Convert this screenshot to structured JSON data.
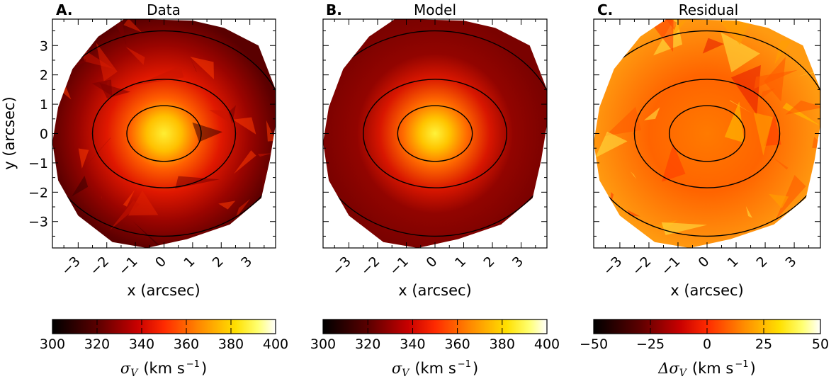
{
  "chart_data": [
    {
      "type": "heatmap",
      "panel_label": "A.",
      "title": "Data",
      "xlabel": "x (arcsec)",
      "ylabel": "y (arcsec)",
      "xlim": [
        -3.9,
        3.9
      ],
      "ylim": [
        -3.9,
        3.9
      ],
      "x_ticks": [
        "−3",
        "−2",
        "−1",
        "0",
        "1",
        "2",
        "3"
      ],
      "y_ticks": [
        "3",
        "2",
        "1",
        "0",
        "−1",
        "−2",
        "−3"
      ],
      "colorbar": {
        "range": [
          300,
          400
        ],
        "ticks": [
          "300",
          "320",
          "340",
          "360",
          "380",
          "400"
        ],
        "label_symbol": "σ",
        "label_sub": "V",
        "label_units": "(km s",
        "label_exp": "−1",
        "label_close": ")"
      },
      "contours": "isophotes (3 ellipses)",
      "colormap": "hot"
    },
    {
      "type": "heatmap",
      "panel_label": "B.",
      "title": "Model",
      "xlabel": "x (arcsec)",
      "xlim": [
        -3.9,
        3.9
      ],
      "ylim": [
        -3.9,
        3.9
      ],
      "x_ticks": [
        "−3",
        "−2",
        "−1",
        "0",
        "1",
        "2",
        "3"
      ],
      "colorbar": {
        "range": [
          300,
          400
        ],
        "ticks": [
          "300",
          "320",
          "340",
          "360",
          "380",
          "400"
        ],
        "label_symbol": "σ",
        "label_sub": "V",
        "label_units": "(km s",
        "label_exp": "−1",
        "label_close": ")"
      },
      "contours": "isophotes (3 ellipses)",
      "colormap": "hot"
    },
    {
      "type": "heatmap",
      "panel_label": "C.",
      "title": "Residual",
      "xlabel": "x (arcsec)",
      "xlim": [
        -3.9,
        3.9
      ],
      "ylim": [
        -3.9,
        3.9
      ],
      "x_ticks": [
        "−3",
        "−2",
        "−1",
        "0",
        "1",
        "2",
        "3"
      ],
      "colorbar": {
        "range": [
          -50,
          50
        ],
        "ticks": [
          "−50",
          "−25",
          "0",
          "25",
          "50"
        ],
        "label_symbol": "Δσ",
        "label_sub": "V",
        "label_units": "(km s",
        "label_exp": "−1",
        "label_close": ")"
      },
      "contours": "isophotes (3 ellipses)",
      "colormap": "hot"
    }
  ]
}
